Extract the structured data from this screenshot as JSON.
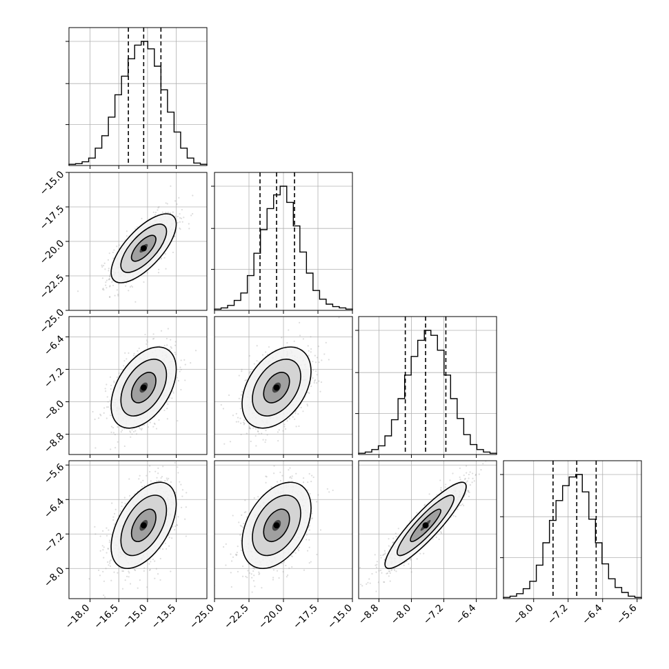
{
  "chart_data": {
    "type": "corner",
    "title": "",
    "parameters": [
      {
        "index": 0,
        "range": [
          -19.1,
          -11.9
        ],
        "ticks": [
          -18.0,
          -16.5,
          -15.0,
          -13.5
        ],
        "tick_labels": [
          "−18.0",
          "−16.5",
          "−15.0",
          "−13.5"
        ],
        "quantiles": [
          -16.0,
          -15.2,
          -14.3
        ],
        "histogram": [
          0.01,
          0.015,
          0.03,
          0.06,
          0.14,
          0.24,
          0.39,
          0.57,
          0.72,
          0.86,
          0.97,
          1.0,
          0.94,
          0.8,
          0.61,
          0.43,
          0.27,
          0.14,
          0.06,
          0.02,
          0.01
        ]
      },
      {
        "index": 1,
        "range": [
          -25.0,
          -15.0
        ],
        "ticks": [
          -25.0,
          -22.5,
          -20.0,
          -17.5,
          -15.0
        ],
        "tick_labels": [
          "−25.0",
          "−22.5",
          "−20.0",
          "−17.5",
          "−15.0"
        ],
        "quantiles": [
          -21.7,
          -20.5,
          -19.2
        ],
        "histogram": [
          0.01,
          0.02,
          0.04,
          0.08,
          0.14,
          0.28,
          0.46,
          0.65,
          0.82,
          0.93,
          1.0,
          0.87,
          0.68,
          0.47,
          0.3,
          0.16,
          0.09,
          0.05,
          0.03,
          0.02,
          0.01
        ]
      },
      {
        "index": 2,
        "range": [
          -9.3,
          -5.9
        ],
        "ticks": [
          -8.8,
          -8.0,
          -7.2,
          -6.4
        ],
        "tick_labels": [
          "−8.8",
          "−8.0",
          "−7.2",
          "−6.4"
        ],
        "quantiles": [
          -8.15,
          -7.65,
          -7.15
        ],
        "histogram": [
          0.01,
          0.02,
          0.04,
          0.07,
          0.15,
          0.28,
          0.45,
          0.64,
          0.79,
          0.92,
          1.0,
          0.96,
          0.84,
          0.64,
          0.45,
          0.29,
          0.16,
          0.08,
          0.04,
          0.02,
          0.01
        ]
      },
      {
        "index": 3,
        "range": [
          -8.7,
          -5.5
        ],
        "ticks": [
          -8.0,
          -7.2,
          -6.4,
          -5.6
        ],
        "tick_labels": [
          "−8.0",
          "−7.2",
          "−6.4",
          "−5.6"
        ],
        "quantiles": [
          -7.55,
          -7.0,
          -6.55
        ],
        "histogram": [
          0.01,
          0.02,
          0.04,
          0.08,
          0.14,
          0.27,
          0.45,
          0.63,
          0.79,
          0.91,
          0.98,
          1.0,
          0.86,
          0.64,
          0.45,
          0.28,
          0.16,
          0.09,
          0.05,
          0.02,
          0.01
        ]
      }
    ],
    "correlations": [
      [
        1.0,
        0.7,
        0.45,
        0.5
      ],
      [
        0.7,
        1.0,
        0.4,
        0.4
      ],
      [
        0.45,
        0.4,
        1.0,
        0.9
      ],
      [
        0.5,
        0.4,
        0.9,
        1.0
      ]
    ],
    "xlabel": "",
    "ylabel": "",
    "grid": true,
    "legend": "none"
  }
}
